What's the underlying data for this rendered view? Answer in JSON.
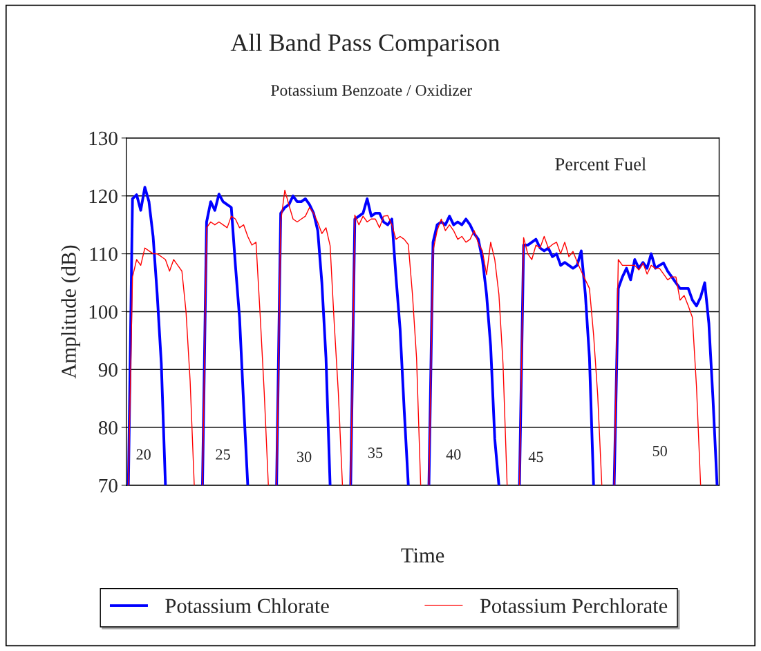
{
  "chart_data": {
    "type": "line",
    "title": "All Band Pass Comparison",
    "subtitle": "Potassium Benzoate / Oxidizer",
    "xlabel": "Time",
    "ylabel": "Amplitude (dB)",
    "annotations": [
      "Percent Fuel",
      "20",
      "25",
      "30",
      "35",
      "40",
      "45",
      "50"
    ],
    "categories": [
      null,
      null,
      null,
      null,
      null,
      null,
      null,
      null,
      null,
      null,
      null,
      null,
      null,
      null,
      null,
      null,
      null,
      null,
      null,
      null,
      null,
      null,
      null,
      null,
      null,
      null,
      null,
      null,
      null,
      null,
      null,
      null,
      null,
      null,
      null,
      null,
      null,
      null,
      null,
      null,
      null,
      null,
      null,
      null,
      null,
      null,
      null,
      null,
      null,
      null,
      null,
      null,
      null,
      null,
      null,
      null,
      null,
      null,
      null,
      null,
      null,
      null,
      null,
      null,
      null,
      null,
      null,
      null,
      null,
      null,
      null,
      null,
      null,
      null,
      null,
      null,
      null,
      null,
      null,
      null,
      null,
      null,
      null,
      null,
      null,
      null,
      null,
      null,
      null,
      null,
      null,
      null,
      null,
      null,
      null,
      null,
      null,
      null,
      null,
      null,
      null,
      null,
      null,
      null,
      null,
      null,
      null,
      null,
      null,
      null,
      null,
      null,
      null,
      null,
      null,
      null,
      null,
      null,
      null,
      null,
      null,
      null,
      null,
      null,
      null,
      null,
      null,
      null,
      null,
      null,
      null,
      null,
      null,
      null,
      null,
      null,
      null,
      null,
      null,
      null,
      null,
      null,
      null,
      null
    ],
    "series": [
      {
        "name": "Potassium Chlorate",
        "color": "#0000ff",
        "values": [
          70,
          119.5,
          120.2,
          117.5,
          121.5,
          119,
          113,
          103,
          91,
          70,
          null,
          null,
          null,
          null,
          null,
          null,
          null,
          null,
          70,
          115.5,
          119,
          117.5,
          120.3,
          119,
          118.5,
          118,
          108,
          99,
          84,
          70,
          null,
          null,
          null,
          null,
          null,
          null,
          70,
          117,
          118,
          118.5,
          120,
          119,
          119,
          119.5,
          118.5,
          117,
          114,
          105,
          92,
          70,
          null,
          null,
          null,
          null,
          70,
          116,
          116.5,
          117,
          119.5,
          116.5,
          117,
          117,
          115.5,
          115,
          116,
          106,
          97,
          83,
          70,
          null,
          null,
          null,
          null,
          70,
          112,
          115,
          115.5,
          115,
          116.5,
          115,
          115.5,
          115,
          116,
          115,
          113.5,
          112.5,
          109,
          103,
          94,
          78,
          70,
          null,
          null,
          null,
          null,
          70,
          111.5,
          111.5,
          112,
          112.5,
          111,
          110.5,
          111,
          109.5,
          110,
          108,
          108.5,
          108,
          107.5,
          108,
          110.5,
          103,
          92,
          70,
          null,
          null,
          null,
          null,
          70,
          104,
          106,
          107.5,
          105.5,
          109,
          107.5,
          108.5,
          107.5,
          110,
          107.5,
          108,
          108.4,
          107,
          106,
          105,
          104,
          104,
          104,
          102,
          101,
          102.5,
          105,
          98,
          85,
          70
        ]
      },
      {
        "name": "Potassium Perchlorate",
        "color": "#ff0000",
        "values": [
          70,
          106,
          109,
          108,
          111,
          110.5,
          110,
          110,
          109.5,
          109,
          107,
          109,
          108,
          107,
          100,
          88,
          70,
          null,
          70,
          114.5,
          115.5,
          115,
          115.5,
          115,
          114.5,
          116.5,
          116,
          114.5,
          115,
          113,
          111.5,
          112,
          99.5,
          86,
          70,
          null,
          70,
          115.5,
          121,
          118.4,
          116,
          115.5,
          116,
          116.5,
          118,
          117,
          115.4,
          113.5,
          114.5,
          111.4,
          98,
          86,
          70,
          null,
          70,
          116.7,
          115,
          116.5,
          115.5,
          116,
          116,
          114.5,
          116.5,
          116.6,
          115,
          112.5,
          113,
          112.5,
          111.6,
          103,
          92,
          70,
          null,
          70,
          110.5,
          114,
          116,
          114,
          115,
          114,
          112.5,
          113,
          112,
          112.5,
          114,
          111.8,
          110.5,
          106.4,
          112,
          109,
          103,
          91,
          70,
          null,
          null,
          70,
          112.8,
          110,
          109,
          111.5,
          111,
          113,
          111,
          111.6,
          112,
          110,
          112,
          109.5,
          110.4,
          108.6,
          107,
          105.5,
          104,
          96,
          85.6,
          70,
          null,
          null,
          70,
          109,
          108,
          108,
          108,
          108,
          107.2,
          108.4,
          106.5,
          108,
          107.5,
          107.5,
          106.5,
          105.5,
          106,
          106,
          102,
          102.8,
          101,
          99,
          87,
          70,
          null,
          null,
          null,
          null
        ]
      }
    ],
    "ylim": [
      70,
      130
    ],
    "yticks": [
      70,
      80,
      90,
      100,
      110,
      120,
      130
    ],
    "grid": "y",
    "legend": "bottom"
  }
}
